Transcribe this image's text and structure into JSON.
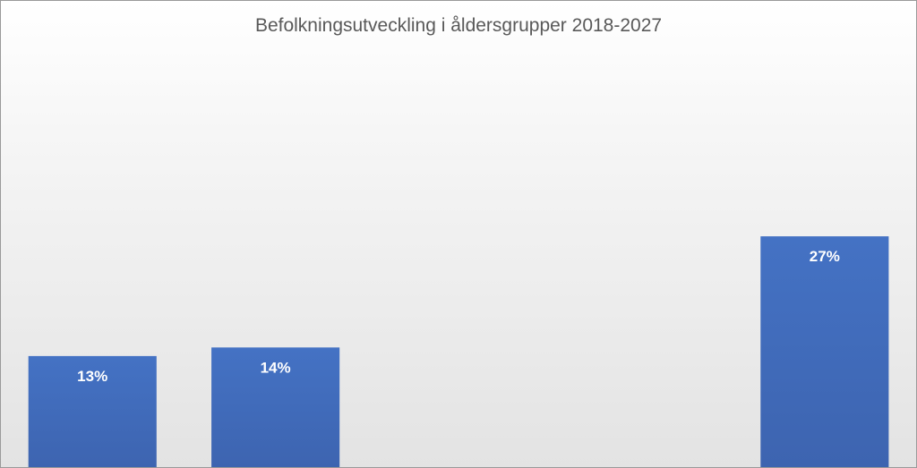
{
  "chart_data": {
    "type": "bar",
    "title": "Befolkningsutveckling i åldersgrupper 2018-2027",
    "xlabel": "",
    "ylabel": "",
    "categories": [
      "",
      "",
      "",
      "",
      ""
    ],
    "values": [
      13,
      14,
      null,
      null,
      27
    ],
    "data_labels": [
      "13%",
      "14%",
      "",
      "",
      "27%"
    ],
    "value_unit": "%",
    "ylim": [
      0,
      32
    ],
    "grid": false,
    "legend": "none",
    "bar_color": "#4472C4",
    "bar_color_dark": "#3d64b0",
    "label_color": "#ffffff"
  }
}
